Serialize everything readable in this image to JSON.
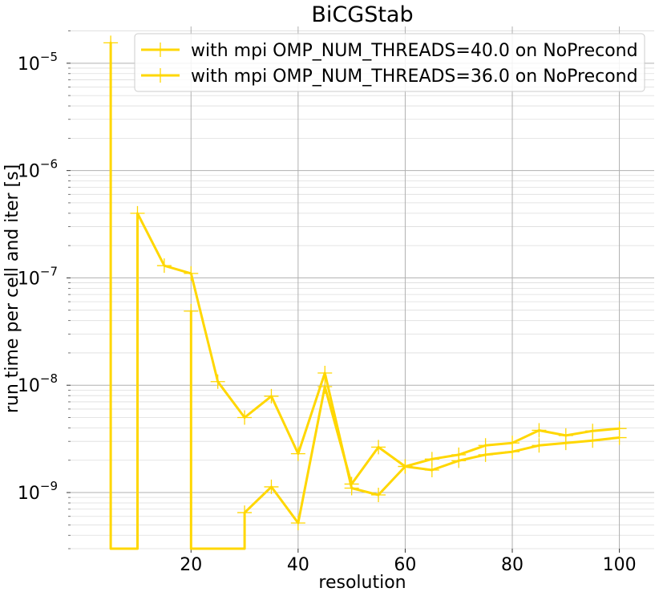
{
  "chart_data": {
    "type": "line",
    "title": "BiCGStab",
    "xlabel": "resolution",
    "ylabel": "run time per cell and iter [s]",
    "yscale": "log",
    "xlim": [
      -2.5,
      106.5
    ],
    "ylim": [
      3e-10,
      2.2e-05
    ],
    "x_ticks": [
      {
        "value": 20,
        "label": "20"
      },
      {
        "value": 40,
        "label": "40"
      },
      {
        "value": 60,
        "label": "60"
      },
      {
        "value": 80,
        "label": "80"
      },
      {
        "value": 100,
        "label": "100"
      }
    ],
    "y_major_ticks": [
      {
        "value": 1e-09,
        "base": "10",
        "exp": "−9"
      },
      {
        "value": 1e-08,
        "base": "10",
        "exp": "−8"
      },
      {
        "value": 1e-07,
        "base": "10",
        "exp": "−7"
      },
      {
        "value": 1e-06,
        "base": "10",
        "exp": "−6"
      },
      {
        "value": 1e-05,
        "base": "10",
        "exp": "−5"
      }
    ],
    "grid": true,
    "legend_position": "top-right",
    "series": [
      {
        "name": "with mpi OMP_NUM_THREADS=40.0 on NoPrecond",
        "color": "#ffd700",
        "points": [
          [
            5,
            0
          ],
          [
            5,
            1.55e-05
          ],
          [
            5,
            0
          ],
          [
            10,
            0
          ],
          [
            10,
            4e-07
          ],
          [
            15,
            1.3e-07
          ],
          [
            20,
            1.1e-07
          ],
          [
            25,
            1.08e-08
          ],
          [
            30,
            5e-09
          ],
          [
            35,
            7.9e-09
          ],
          [
            40,
            2.3e-09
          ],
          [
            45,
            1.3e-08
          ],
          [
            50,
            1.1e-09
          ],
          [
            55,
            9.5e-10
          ],
          [
            60,
            1.75e-09
          ],
          [
            65,
            2.05e-09
          ],
          [
            70,
            2.25e-09
          ],
          [
            75,
            2.75e-09
          ],
          [
            80,
            2.9e-09
          ],
          [
            85,
            3.8e-09
          ],
          [
            90,
            3.4e-09
          ],
          [
            95,
            3.75e-09
          ],
          [
            100,
            3.95e-09
          ]
        ]
      },
      {
        "name": "with mpi OMP_NUM_THREADS=36.0 on NoPrecond",
        "color": "#ffd700",
        "points": [
          [
            20,
            0
          ],
          [
            20,
            4.9e-08
          ],
          [
            20,
            0
          ],
          [
            30,
            0
          ],
          [
            30,
            6.5e-10
          ],
          [
            35,
            1.13e-09
          ],
          [
            40,
            5.2e-10
          ],
          [
            45,
            9.7e-09
          ],
          [
            50,
            1.2e-09
          ],
          [
            55,
            2.65e-09
          ],
          [
            60,
            1.75e-09
          ],
          [
            65,
            1.62e-09
          ],
          [
            70,
            1.98e-09
          ],
          [
            75,
            2.25e-09
          ],
          [
            80,
            2.4e-09
          ],
          [
            85,
            2.75e-09
          ],
          [
            90,
            2.9e-09
          ],
          [
            95,
            3.05e-09
          ],
          [
            100,
            3.25e-09
          ]
        ]
      }
    ]
  }
}
